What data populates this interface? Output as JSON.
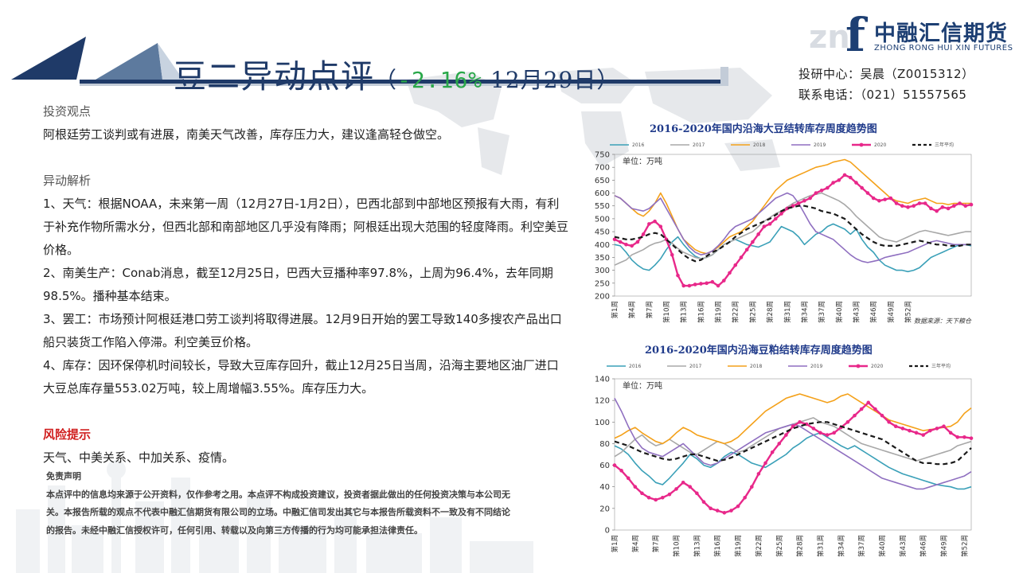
{
  "header": {
    "title_main": "豆二异动点评",
    "title_open": "（",
    "title_change": "-2.16%",
    "title_date": " 12月29日",
    "title_close": "）"
  },
  "brand": {
    "name_cn": "中融汇信期货",
    "name_en": "ZHONG RONG HUI XIN FUTURES",
    "logo_letter": "f",
    "logo_bg_letters": "zn"
  },
  "contact": {
    "line1": "投研中心：吴晨（Z0015312）",
    "line2": "联系电话：（021）51557565"
  },
  "sections": {
    "view_heading": "投资观点",
    "view_text": "阿根廷劳工谈判或有进展，南美天气改善，库存压力大，建议逢高轻仓做空。",
    "analysis_heading": "异动解析",
    "items": [
      "1、天气：根据NOAA，未来第一周（12月27日-1月2日），巴西北部到中部地区预报有大雨，有利于补充作物所需水分，但西北部和南部地区几乎没有降雨；阿根廷出现大范围的轻度降雨。利空美豆价格。",
      "2、南美生产：Conab消息，截至12月25日，巴西大豆播种率97.8%，上周为96.4%，去年同期98.5%。播种基本结束。",
      "3、罢工：市场预计阿根廷港口劳工谈判将取得进展。12月9日开始的罢工导致140多搜农产品出口船只装货工作陷入停滞。利空美豆价格。",
      "4、库存：因环保停机时间较长，导致大豆库存回升，截止12月25日当周，沿海主要地区油厂进口大豆总库存量553.02万吨，较上周增幅3.55%。库存压力大。"
    ],
    "risk_heading": "风险提示",
    "risk_text": "天气、中美关系、中加关系、疫情。"
  },
  "disclaimer": {
    "heading": "免责声明",
    "text": "本点评中的信息均来源于公开资料，仅作参考之用。本点评不构成投资建议，投资者据此做出的任何投资决策与本公司无关。本报告所载的观点不代表中融汇信期货有限公司的立场。中融汇信司发出其它与本报告所载资料不一致及有不同结论的报告。未经中融汇信授权许可，任何引用、转载以及向第三方传播的行为均可能承担法律责任。"
  },
  "chart_data": [
    {
      "type": "line",
      "title": "2016-2020年国内沿海大豆结转库存周度趋势图",
      "unit_label": "单位：万吨",
      "source": "数据来源：天下粮仓",
      "ylim": [
        200,
        750
      ],
      "yticks": [
        200,
        250,
        300,
        350,
        400,
        450,
        500,
        550,
        600,
        650,
        700,
        750
      ],
      "xticks": [
        "第1周",
        "第4周",
        "第7周",
        "第10周",
        "第13周",
        "第16周",
        "第19周",
        "第22周",
        "第25周",
        "第28周",
        "第31周",
        "第34周",
        "第37周",
        "第40周",
        "第43周",
        "第46周",
        "第49周",
        "第52周"
      ],
      "series": [
        {
          "name": "2016",
          "color": "#3aa0b8",
          "dash": false,
          "width": 1.6,
          "marker": false,
          "values": [
            400,
            395,
            370,
            340,
            320,
            305,
            300,
            320,
            345,
            380,
            410,
            430,
            400,
            375,
            355,
            345,
            350,
            360,
            380,
            400,
            410,
            420,
            410,
            400,
            395,
            390,
            400,
            410,
            440,
            470,
            460,
            450,
            430,
            400,
            420,
            440,
            450,
            470,
            480,
            470,
            460,
            440,
            460,
            420,
            390,
            370,
            340,
            320,
            310,
            300,
            300,
            295,
            300,
            310,
            330,
            350,
            360,
            370,
            380,
            390,
            400,
            400,
            395
          ]
        },
        {
          "name": "2017",
          "color": "#a8a8a8",
          "dash": false,
          "width": 1.6,
          "marker": false,
          "values": [
            320,
            330,
            340,
            360,
            370,
            380,
            395,
            405,
            410,
            420,
            405,
            385,
            370,
            360,
            350,
            345,
            350,
            360,
            380,
            400,
            410,
            420,
            430,
            440,
            450,
            470,
            490,
            505,
            520,
            530,
            545,
            560,
            570,
            580,
            590,
            595,
            600,
            590,
            580,
            570,
            555,
            535,
            510,
            490,
            470,
            450,
            430,
            420,
            415,
            410,
            420,
            430,
            440,
            450,
            455,
            450,
            445,
            440,
            435,
            440,
            445,
            450,
            450
          ]
        },
        {
          "name": "2018",
          "color": "#f4a11a",
          "dash": false,
          "width": 1.6,
          "marker": false,
          "values": [
            590,
            580,
            560,
            540,
            520,
            510,
            530,
            560,
            600,
            560,
            510,
            460,
            420,
            400,
            380,
            370,
            365,
            375,
            390,
            410,
            430,
            440,
            450,
            470,
            490,
            520,
            550,
            580,
            610,
            630,
            650,
            660,
            670,
            680,
            690,
            700,
            705,
            710,
            720,
            725,
            730,
            720,
            700,
            680,
            660,
            640,
            620,
            600,
            580,
            570,
            565,
            560,
            570,
            575,
            580,
            570,
            560,
            560,
            555,
            560,
            560,
            560,
            560
          ]
        },
        {
          "name": "2019",
          "color": "#8f6fc0",
          "dash": false,
          "width": 1.6,
          "marker": false,
          "values": [
            590,
            580,
            560,
            540,
            535,
            530,
            540,
            560,
            580,
            540,
            500,
            460,
            420,
            390,
            370,
            360,
            365,
            375,
            395,
            420,
            450,
            470,
            480,
            490,
            500,
            520,
            540,
            560,
            580,
            590,
            600,
            590,
            560,
            520,
            480,
            450,
            440,
            430,
            420,
            400,
            380,
            360,
            345,
            335,
            330,
            335,
            340,
            350,
            355,
            360,
            365,
            370,
            380,
            390,
            400,
            410,
            415,
            410,
            405,
            400,
            400,
            400,
            400
          ]
        },
        {
          "name": "2020",
          "color": "#e8288a",
          "dash": false,
          "width": 2.4,
          "marker": true,
          "values": [
            420,
            410,
            400,
            395,
            410,
            440,
            480,
            490,
            470,
            420,
            360,
            280,
            240,
            240,
            245,
            248,
            250,
            255,
            240,
            260,
            290,
            320,
            350,
            380,
            410,
            440,
            470,
            480,
            500,
            520,
            540,
            550,
            560,
            570,
            580,
            600,
            610,
            620,
            640,
            650,
            670,
            660,
            640,
            620,
            600,
            580,
            570,
            575,
            580,
            560,
            550,
            545,
            550,
            560,
            560,
            540,
            530,
            545,
            540,
            550,
            560,
            550,
            555
          ]
        },
        {
          "name": "三年平均",
          "color": "#1a1a1a",
          "dash": true,
          "width": 2.2,
          "marker": false,
          "values": [
            430,
            425,
            420,
            420,
            425,
            430,
            440,
            445,
            440,
            420,
            400,
            380,
            360,
            345,
            335,
            340,
            355,
            370,
            380,
            395,
            410,
            430,
            445,
            460,
            470,
            480,
            490,
            500,
            515,
            530,
            540,
            545,
            550,
            550,
            545,
            540,
            530,
            525,
            520,
            510,
            500,
            480,
            460,
            440,
            425,
            410,
            400,
            395,
            395,
            395,
            400,
            405,
            410,
            415,
            410,
            405,
            400,
            400,
            395,
            395,
            395,
            400,
            400
          ]
        }
      ]
    },
    {
      "type": "line",
      "title": "2016-2020年国内沿海豆粕结转库存周度趋势图",
      "unit_label": "单位：万吨",
      "ylim": [
        0,
        140
      ],
      "yticks": [
        0,
        20,
        40,
        60,
        80,
        100,
        120,
        140
      ],
      "xticks": [
        "第1周",
        "第4周",
        "第7周",
        "第10周",
        "第13周",
        "第16周",
        "第19周",
        "第22周",
        "第25周",
        "第28周",
        "第31周",
        "第34周",
        "第37周",
        "第40周",
        "第43周",
        "第46周",
        "第49周",
        "第52周"
      ],
      "series": [
        {
          "name": "2016",
          "color": "#3aa0b8",
          "dash": false,
          "width": 1.6,
          "marker": false,
          "values": [
            78,
            75,
            70,
            62,
            55,
            50,
            44,
            42,
            48,
            55,
            62,
            70,
            66,
            60,
            58,
            62,
            68,
            72,
            70,
            66,
            62,
            60,
            58,
            62,
            66,
            70,
            76,
            80,
            85,
            88,
            90,
            86,
            82,
            78,
            75,
            78,
            74,
            70,
            66,
            62,
            58,
            55,
            52,
            50,
            48,
            46,
            44,
            42,
            41,
            40,
            38,
            38,
            40
          ]
        },
        {
          "name": "2017",
          "color": "#a8a8a8",
          "dash": false,
          "width": 1.6,
          "marker": false,
          "values": [
            68,
            72,
            78,
            84,
            88,
            82,
            78,
            80,
            84,
            80,
            76,
            72,
            70,
            74,
            78,
            82,
            80,
            76,
            72,
            74,
            78,
            82,
            86,
            90,
            94,
            96,
            98,
            100,
            102,
            104,
            100,
            98,
            96,
            92,
            88,
            84,
            80,
            78,
            76,
            74,
            72,
            70,
            68,
            66,
            64,
            66,
            68,
            70,
            72,
            74,
            78,
            80,
            82
          ]
        },
        {
          "name": "2018",
          "color": "#f4a11a",
          "dash": false,
          "width": 1.6,
          "marker": false,
          "values": [
            85,
            88,
            92,
            95,
            90,
            86,
            82,
            80,
            84,
            90,
            95,
            92,
            88,
            86,
            84,
            82,
            80,
            82,
            86,
            92,
            98,
            104,
            110,
            114,
            118,
            122,
            124,
            126,
            124,
            122,
            120,
            118,
            120,
            124,
            126,
            122,
            118,
            114,
            110,
            106,
            102,
            100,
            98,
            96,
            94,
            92,
            93,
            94,
            95,
            96,
            100,
            108,
            113
          ]
        },
        {
          "name": "2019",
          "color": "#8f6fc0",
          "dash": false,
          "width": 1.6,
          "marker": false,
          "values": [
            122,
            110,
            96,
            84,
            76,
            72,
            70,
            68,
            72,
            76,
            80,
            74,
            68,
            62,
            60,
            62,
            66,
            70,
            74,
            78,
            82,
            86,
            90,
            92,
            94,
            96,
            98,
            96,
            92,
            88,
            84,
            80,
            76,
            72,
            68,
            64,
            60,
            56,
            52,
            48,
            46,
            44,
            42,
            40,
            38,
            38,
            40,
            42,
            44,
            46,
            48,
            50,
            54
          ]
        },
        {
          "name": "2020",
          "color": "#e8288a",
          "dash": false,
          "width": 2.4,
          "marker": true,
          "values": [
            60,
            55,
            48,
            40,
            34,
            30,
            28,
            30,
            33,
            38,
            44,
            40,
            34,
            26,
            20,
            18,
            16,
            18,
            22,
            30,
            40,
            52,
            62,
            72,
            80,
            88,
            96,
            100,
            98,
            94,
            90,
            88,
            90,
            95,
            100,
            106,
            112,
            118,
            112,
            106,
            100,
            96,
            94,
            92,
            90,
            88,
            92,
            94,
            96,
            90,
            86,
            86,
            85
          ]
        },
        {
          "name": "三年平均",
          "color": "#1a1a1a",
          "dash": true,
          "width": 2.2,
          "marker": false,
          "values": [
            82,
            80,
            78,
            75,
            72,
            70,
            68,
            66,
            65,
            66,
            68,
            70,
            70,
            68,
            66,
            64,
            65,
            67,
            70,
            73,
            76,
            79,
            82,
            85,
            88,
            91,
            94,
            96,
            98,
            99,
            100,
            100,
            98,
            96,
            94,
            92,
            90,
            88,
            86,
            84,
            80,
            76,
            72,
            68,
            64,
            62,
            62,
            61,
            61,
            62,
            64,
            70,
            76
          ]
        }
      ]
    }
  ]
}
